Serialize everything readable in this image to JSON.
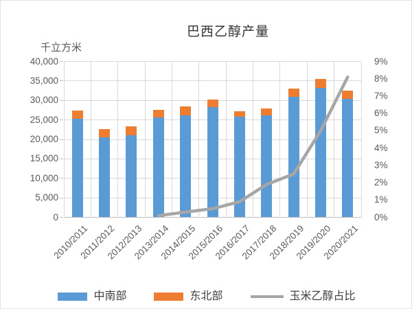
{
  "chart_data": {
    "type": "bar",
    "subtype": "stacked-bars-with-secondary-axis-line",
    "title": "巴西乙醇产量",
    "categories": [
      "2010/2011",
      "2011/2012",
      "2012/2013",
      "2013/2014",
      "2014/2015",
      "2015/2016",
      "2016/2017",
      "2017/2018",
      "2018/2019",
      "2019/2020",
      "2020/2021"
    ],
    "series": [
      {
        "name": "中南部",
        "type": "bar",
        "stack": true,
        "axis": "left",
        "color": "#5B9BD5",
        "values": [
          25300,
          20500,
          21100,
          25600,
          26100,
          28200,
          25800,
          26100,
          31000,
          33300,
          30400
        ]
      },
      {
        "name": "东北部",
        "type": "bar",
        "stack": true,
        "axis": "left",
        "color": "#ED7D31",
        "values": [
          2100,
          2100,
          2200,
          1900,
          2400,
          2100,
          1500,
          1800,
          2100,
          2200,
          2100
        ]
      },
      {
        "name": "玉米乙醇占比",
        "type": "line",
        "axis": "right",
        "color": "#A6A6A6",
        "values": [
          null,
          null,
          null,
          0.1,
          0.3,
          0.5,
          0.9,
          1.9,
          2.5,
          5.0,
          8.1
        ]
      }
    ],
    "left_axis": {
      "unit": "千立方米",
      "min": 0,
      "max": 40000,
      "step": 5000,
      "tick_labels": [
        "40,000",
        "35,000",
        "30,000",
        "25,000",
        "20,000",
        "15,000",
        "10,000",
        "5,000",
        "0"
      ]
    },
    "right_axis": {
      "min": 0,
      "max": 9,
      "step": 1,
      "tick_labels": [
        "9%",
        "8%",
        "7%",
        "6%",
        "5%",
        "4%",
        "3%",
        "2%",
        "1%",
        "0%"
      ]
    },
    "grid": {
      "horizontal": true,
      "vertical": true,
      "color": "#D9D9D9"
    },
    "legend_position": "bottom"
  }
}
